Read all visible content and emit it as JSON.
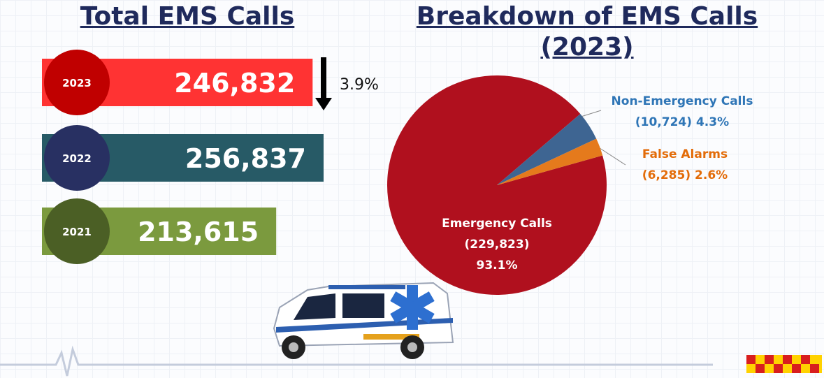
{
  "chart_data": [
    {
      "type": "bar",
      "title": "Total EMS Calls",
      "categories": [
        "2023",
        "2022",
        "2021"
      ],
      "values": [
        246832,
        256837,
        213615
      ],
      "value_labels": [
        "246,832",
        "256,837",
        "213,615"
      ],
      "colors": [
        "#ff3333",
        "#275a66",
        "#7b9a3e"
      ],
      "circle_colors": [
        "#c00000",
        "#283062",
        "#4b5f25"
      ],
      "annotation": "3.9%"
    },
    {
      "type": "pie",
      "title": "Breakdown of EMS Calls (2023)",
      "categories": [
        "Emergency Calls",
        "Non-Emergency Calls",
        "False Alarms"
      ],
      "values": [
        93.1,
        4.3,
        2.6
      ],
      "value_labels": [
        "93.1%",
        "4.3%",
        "2.6%"
      ],
      "counts": [
        229823,
        10724,
        6285
      ],
      "count_labels": [
        "(229,823)",
        "(10,724)",
        "(6,285)"
      ],
      "colors": [
        "#b0101e",
        "#3e6592",
        "#e57a1c"
      ],
      "label_colors": [
        "#ffffff",
        "#2e75b6",
        "#e36c09"
      ]
    }
  ]
}
